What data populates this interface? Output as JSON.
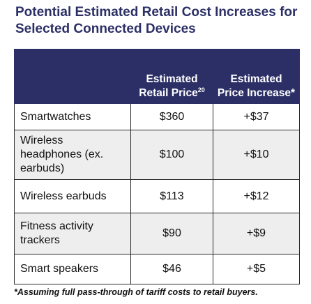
{
  "title": "Potential Estimated Retail Cost Increases for Selected Connected Devices",
  "table": {
    "headers": [
      {
        "text": "",
        "sup": ""
      },
      {
        "text": "Estimated Retail Price",
        "sup": "20"
      },
      {
        "text": "Estimated Price Increase*",
        "sup": ""
      }
    ],
    "rows": [
      {
        "device": "Smartwatches",
        "price": "$360",
        "increase": "+$37"
      },
      {
        "device": "Wireless headphones (ex. earbuds)",
        "price": "$100",
        "increase": "+$10"
      },
      {
        "device": "Wireless earbuds",
        "price": "$113",
        "increase": "+$12"
      },
      {
        "device": "Fitness activity trackers",
        "price": "$90",
        "increase": "+$9"
      },
      {
        "device": "Smart speakers",
        "price": "$46",
        "increase": "+$5"
      }
    ]
  },
  "colors": {
    "header_bg": "#2b2f66",
    "title": "#2b2f66",
    "alt_row_bg": "#eeeeee"
  },
  "footnote": "*Assuming full pass-through of tariff costs to retail buyers."
}
